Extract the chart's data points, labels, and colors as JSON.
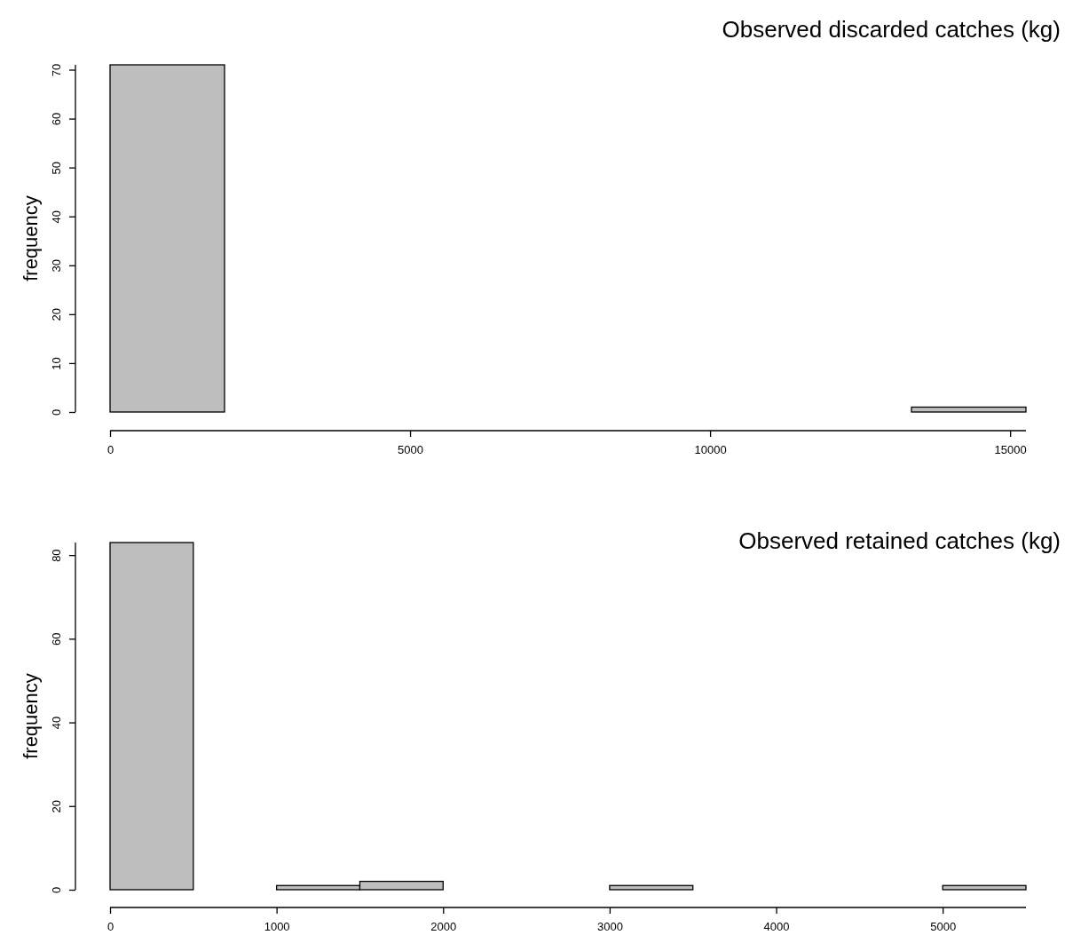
{
  "chart_data": [
    {
      "type": "histogram",
      "title": "Observed discarded catches (kg)",
      "ylabel": "frequency",
      "color": "#bebebe",
      "bins": [
        0,
        1908,
        3816,
        5724,
        7632,
        9540,
        11448,
        13356,
        15264
      ],
      "values": [
        71,
        0,
        0,
        0,
        0,
        0,
        0,
        1
      ],
      "xlim": [
        0,
        15264
      ],
      "xticks": [
        0,
        5000,
        10000,
        15000
      ],
      "ylim": [
        0,
        71
      ],
      "yticks": [
        0,
        10,
        20,
        30,
        40,
        50,
        60,
        70
      ],
      "grid": false
    },
    {
      "type": "histogram",
      "title": "Observed retained catches (kg)",
      "ylabel": "frequency",
      "color": "#bebebe",
      "bins": [
        0,
        500,
        1000,
        1500,
        2000,
        2500,
        3000,
        3500,
        4000,
        4500,
        5000,
        5500
      ],
      "values": [
        83,
        0,
        1,
        2,
        0,
        0,
        1,
        0,
        0,
        0,
        1
      ],
      "xlim": [
        0,
        5500
      ],
      "xticks": [
        0,
        1000,
        2000,
        3000,
        4000,
        5000
      ],
      "ylim": [
        0,
        83
      ],
      "yticks": [
        0,
        20,
        40,
        60,
        80
      ],
      "grid": false
    }
  ]
}
